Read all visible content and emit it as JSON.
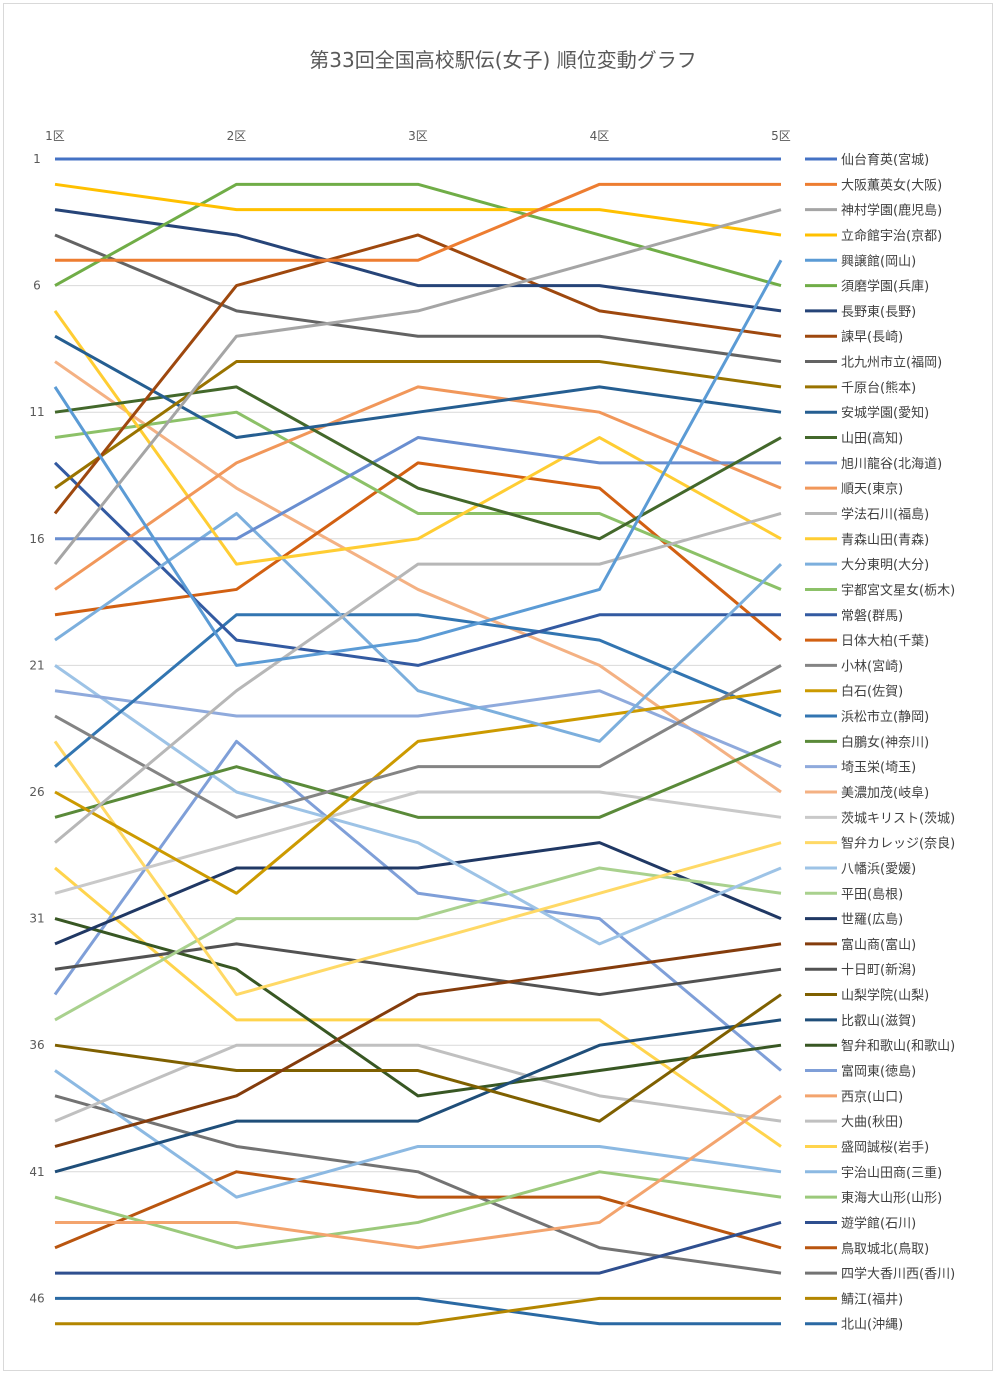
{
  "chart_data": {
    "type": "line",
    "title": "第33回全国高校駅伝(女子) 順位変動グラフ",
    "categories": [
      "1区",
      "2区",
      "3区",
      "4区",
      "5区"
    ],
    "y_ticks": [
      1,
      6,
      11,
      16,
      21,
      26,
      31,
      36,
      41,
      46
    ],
    "ylim": [
      1,
      47
    ],
    "y_inverted": true,
    "grid": true,
    "legend_position": "right",
    "series": [
      {
        "name": "仙台育英(宮城)",
        "color": "#4472C4",
        "values": [
          1,
          1,
          1,
          1,
          1
        ]
      },
      {
        "name": "大阪薫英女(大阪)",
        "color": "#ED7D31",
        "values": [
          5,
          5,
          5,
          2,
          2
        ]
      },
      {
        "name": "神村学園(鹿児島)",
        "color": "#A5A5A5",
        "values": [
          17,
          8,
          7,
          5,
          3
        ]
      },
      {
        "name": "立命館宇治(京都)",
        "color": "#FFC000",
        "values": [
          2,
          3,
          3,
          3,
          4
        ]
      },
      {
        "name": "興譲館(岡山)",
        "color": "#5B9BD5",
        "values": [
          10,
          21,
          20,
          18,
          5
        ]
      },
      {
        "name": "須磨学園(兵庫)",
        "color": "#70AD47",
        "values": [
          6,
          2,
          2,
          4,
          6
        ]
      },
      {
        "name": "長野東(長野)",
        "color": "#264478",
        "values": [
          3,
          4,
          6,
          6,
          7
        ]
      },
      {
        "name": "諫早(長崎)",
        "color": "#9E480E",
        "values": [
          15,
          6,
          4,
          7,
          8
        ]
      },
      {
        "name": "北九州市立(福岡)",
        "color": "#636363",
        "values": [
          4,
          7,
          8,
          8,
          9
        ]
      },
      {
        "name": "千原台(熊本)",
        "color": "#997300",
        "values": [
          14,
          9,
          9,
          9,
          10
        ]
      },
      {
        "name": "安城学園(愛知)",
        "color": "#255E91",
        "values": [
          8,
          12,
          11,
          10,
          11
        ]
      },
      {
        "name": "山田(高知)",
        "color": "#43682B",
        "values": [
          11,
          10,
          14,
          16,
          12
        ]
      },
      {
        "name": "旭川龍谷(北海道)",
        "color": "#698ED0",
        "values": [
          16,
          16,
          12,
          13,
          13
        ]
      },
      {
        "name": "順天(東京)",
        "color": "#F1975A",
        "values": [
          18,
          13,
          10,
          11,
          14
        ]
      },
      {
        "name": "学法石川(福島)",
        "color": "#B7B7B7",
        "values": [
          28,
          22,
          17,
          17,
          15
        ]
      },
      {
        "name": "青森山田(青森)",
        "color": "#FFCD33",
        "values": [
          7,
          17,
          16,
          12,
          16
        ]
      },
      {
        "name": "大分東明(大分)",
        "color": "#7CAFDD",
        "values": [
          20,
          15,
          22,
          24,
          17
        ]
      },
      {
        "name": "宇都宮文星女(栃木)",
        "color": "#8CC168",
        "values": [
          12,
          11,
          15,
          15,
          18
        ]
      },
      {
        "name": "常磐(群馬)",
        "color": "#335AA1",
        "values": [
          13,
          20,
          21,
          19,
          19
        ]
      },
      {
        "name": "日体大柏(千葉)",
        "color": "#D26012",
        "values": [
          19,
          18,
          13,
          14,
          20
        ]
      },
      {
        "name": "小林(宮崎)",
        "color": "#848484",
        "values": [
          23,
          27,
          25,
          25,
          21
        ]
      },
      {
        "name": "白石(佐賀)",
        "color": "#CC9A00",
        "values": [
          26,
          30,
          24,
          23,
          22
        ]
      },
      {
        "name": "浜松市立(静岡)",
        "color": "#3275B1",
        "values": [
          25,
          19,
          19,
          20,
          23
        ]
      },
      {
        "name": "白鵬女(神奈川)",
        "color": "#5A8A39",
        "values": [
          27,
          25,
          27,
          27,
          24
        ]
      },
      {
        "name": "埼玉栄(埼玉)",
        "color": "#8FAADC",
        "values": [
          22,
          23,
          23,
          22,
          25
        ]
      },
      {
        "name": "美濃加茂(岐阜)",
        "color": "#F4B183",
        "values": [
          9,
          14,
          18,
          21,
          26
        ]
      },
      {
        "name": "茨城キリスト(茨城)",
        "color": "#C9C9C9",
        "values": [
          30,
          28,
          26,
          26,
          27
        ]
      },
      {
        "name": "智弁カレッジ(奈良)",
        "color": "#FFD966",
        "values": [
          24,
          34,
          32,
          30,
          28
        ]
      },
      {
        "name": "八幡浜(愛媛)",
        "color": "#9DC3E6",
        "values": [
          21,
          26,
          28,
          32,
          29
        ]
      },
      {
        "name": "平田(島根)",
        "color": "#A9D18E",
        "values": [
          35,
          31,
          31,
          29,
          30
        ]
      },
      {
        "name": "世羅(広島)",
        "color": "#203864",
        "values": [
          32,
          29,
          29,
          28,
          31
        ]
      },
      {
        "name": "富山商(富山)",
        "color": "#843C0C",
        "values": [
          40,
          38,
          34,
          33,
          32
        ]
      },
      {
        "name": "十日町(新潟)",
        "color": "#525252",
        "values": [
          33,
          32,
          33,
          34,
          33
        ]
      },
      {
        "name": "山梨学院(山梨)",
        "color": "#7F6000",
        "values": [
          36,
          37,
          37,
          39,
          34
        ]
      },
      {
        "name": "比叡山(滋賀)",
        "color": "#1F4E79",
        "values": [
          41,
          39,
          39,
          36,
          35
        ]
      },
      {
        "name": "智弁和歌山(和歌山)",
        "color": "#385723",
        "values": [
          31,
          33,
          38,
          37,
          36
        ]
      },
      {
        "name": "富岡東(徳島)",
        "color": "#7F9FD8",
        "values": [
          34,
          24,
          30,
          31,
          37
        ]
      },
      {
        "name": "西京(山口)",
        "color": "#F3A46E",
        "values": [
          43,
          43,
          44,
          43,
          38
        ]
      },
      {
        "name": "大曲(秋田)",
        "color": "#C0C0C0",
        "values": [
          39,
          36,
          36,
          38,
          39
        ]
      },
      {
        "name": "盛岡誠桜(岩手)",
        "color": "#FFD44D",
        "values": [
          29,
          35,
          35,
          35,
          40
        ]
      },
      {
        "name": "宇治山田商(三重)",
        "color": "#8CB9E2",
        "values": [
          37,
          42,
          40,
          40,
          41
        ]
      },
      {
        "name": "東海大山形(山形)",
        "color": "#9BC97B",
        "values": [
          42,
          44,
          43,
          41,
          42
        ]
      },
      {
        "name": "遊学館(石川)",
        "color": "#2F4F8F",
        "values": [
          45,
          45,
          45,
          45,
          43
        ]
      },
      {
        "name": "鳥取城北(鳥取)",
        "color": "#B9550F",
        "values": [
          44,
          41,
          42,
          42,
          44
        ]
      },
      {
        "name": "四学大香川西(香川)",
        "color": "#737373",
        "values": [
          38,
          40,
          41,
          44,
          45
        ]
      },
      {
        "name": "鯖江(福井)",
        "color": "#B38600",
        "values": [
          47,
          47,
          47,
          46,
          46
        ]
      },
      {
        "name": "北山(沖縄)",
        "color": "#2A69A3",
        "values": [
          46,
          46,
          46,
          47,
          47
        ]
      }
    ]
  }
}
